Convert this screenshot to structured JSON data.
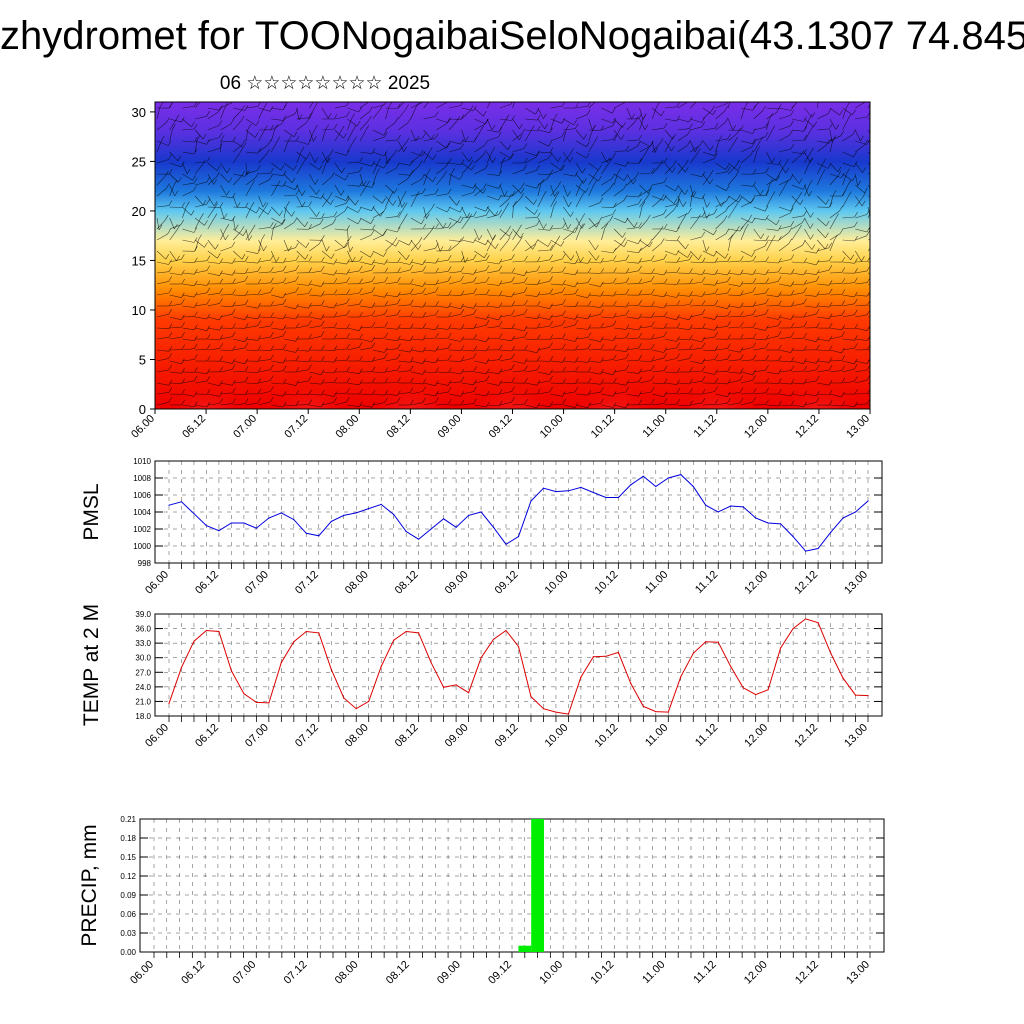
{
  "title": "zhydromet for TOONogaibaiSeloNogaibai(43.1307 74.845",
  "subtitle": "06 ☆☆☆☆☆☆☆☆ 2025",
  "x_ticks": [
    "06.00",
    "06.12",
    "07.00",
    "07.12",
    "08.00",
    "08.12",
    "09.00",
    "09.12",
    "10.00",
    "10.12",
    "11.00",
    "11.12",
    "12.00",
    "12.12",
    "13.00"
  ],
  "colors": {
    "pmsl": "#0000dd",
    "temp": "#dd0000",
    "precip": "#00ee00"
  },
  "chart_data": [
    {
      "type": "heatmap",
      "title": "",
      "xlabel": "",
      "ylabel": "",
      "x": [
        "06.00",
        "06.12",
        "07.00",
        "07.12",
        "08.00",
        "08.12",
        "09.00",
        "09.12",
        "10.00",
        "10.12",
        "11.00",
        "11.12",
        "12.00",
        "12.12",
        "13.00"
      ],
      "y_ticks": [
        0,
        5,
        10,
        15,
        20,
        25,
        30
      ],
      "ylim": [
        0,
        31
      ],
      "colormap_layers": [
        {
          "y": 0,
          "color": "#ee0000"
        },
        {
          "y": 9,
          "color": "#ff3a00"
        },
        {
          "y": 12,
          "color": "#ff8a00"
        },
        {
          "y": 15,
          "color": "#ffd24a"
        },
        {
          "y": 17,
          "color": "#ffee99"
        },
        {
          "y": 20,
          "color": "#5ec8f0"
        },
        {
          "y": 22,
          "color": "#1e78dd"
        },
        {
          "y": 25,
          "color": "#1838cc"
        },
        {
          "y": 28,
          "color": "#5a30e0"
        },
        {
          "y": 31,
          "color": "#7a2ee8"
        }
      ],
      "overlay": "wind barbs"
    },
    {
      "type": "line",
      "ylabel": "PMSL",
      "ylim": [
        998,
        1010
      ],
      "y_ticks": [
        998,
        1000,
        1002,
        1004,
        1006,
        1008,
        1010
      ],
      "x_step_hours": 3,
      "values": [
        1004.8,
        1005.2,
        1003.8,
        1002.4,
        1001.8,
        1002.7,
        1002.7,
        1002.1,
        1003.3,
        1003.9,
        1003.1,
        1001.5,
        1001.2,
        1002.9,
        1003.6,
        1003.9,
        1004.4,
        1004.9,
        1003.7,
        1001.7,
        1000.8,
        1002.0,
        1003.2,
        1002.2,
        1003.6,
        1004.0,
        1002.2,
        1000.2,
        1001.1,
        1005.3,
        1006.8,
        1006.4,
        1006.5,
        1006.9,
        1006.3,
        1005.7,
        1005.7,
        1007.2,
        1008.2,
        1007.0,
        1008.0,
        1008.4,
        1007.0,
        1004.8,
        1004.0,
        1004.7,
        1004.6,
        1003.3,
        1002.7,
        1002.6,
        1001.1,
        999.4,
        999.7,
        1001.6,
        1003.3,
        1004.0,
        1005.3
      ],
      "grid": true
    },
    {
      "type": "line",
      "ylabel": "TEMP at 2 M",
      "ylim": [
        18,
        39
      ],
      "y_ticks": [
        "18.0",
        "21.0",
        "24.0",
        "27.0",
        "30.0",
        "33.0",
        "36.0",
        "39.0"
      ],
      "x_step_hours": 3,
      "values": [
        20.6,
        28.0,
        33.4,
        35.6,
        35.4,
        27.3,
        22.6,
        20.8,
        20.7,
        29.0,
        33.3,
        35.4,
        35.1,
        27.6,
        21.7,
        19.5,
        21.0,
        28.2,
        33.6,
        35.4,
        35.1,
        29.0,
        23.9,
        24.4,
        22.8,
        30.0,
        33.8,
        35.6,
        32.3,
        22.0,
        19.5,
        18.8,
        18.4,
        26.0,
        30.2,
        30.3,
        31.1,
        24.7,
        20.0,
        18.9,
        18.8,
        26.1,
        30.9,
        33.3,
        33.2,
        28.2,
        23.8,
        22.4,
        23.4,
        32.0,
        36.0,
        38.0,
        37.2,
        31.0,
        25.8,
        22.3,
        22.2
      ],
      "grid": true
    },
    {
      "type": "bar",
      "ylabel": "PRECIP, mm",
      "ylim": [
        0,
        0.21
      ],
      "y_ticks": [
        "0.00",
        "0.03",
        "0.06",
        "0.09",
        "0.12",
        "0.15",
        "0.18",
        "0.21"
      ],
      "x_step_hours": 3,
      "bars": [
        {
          "index": 29,
          "value": 0.01
        },
        {
          "index": 30,
          "value": 0.21
        }
      ],
      "grid": true
    }
  ]
}
